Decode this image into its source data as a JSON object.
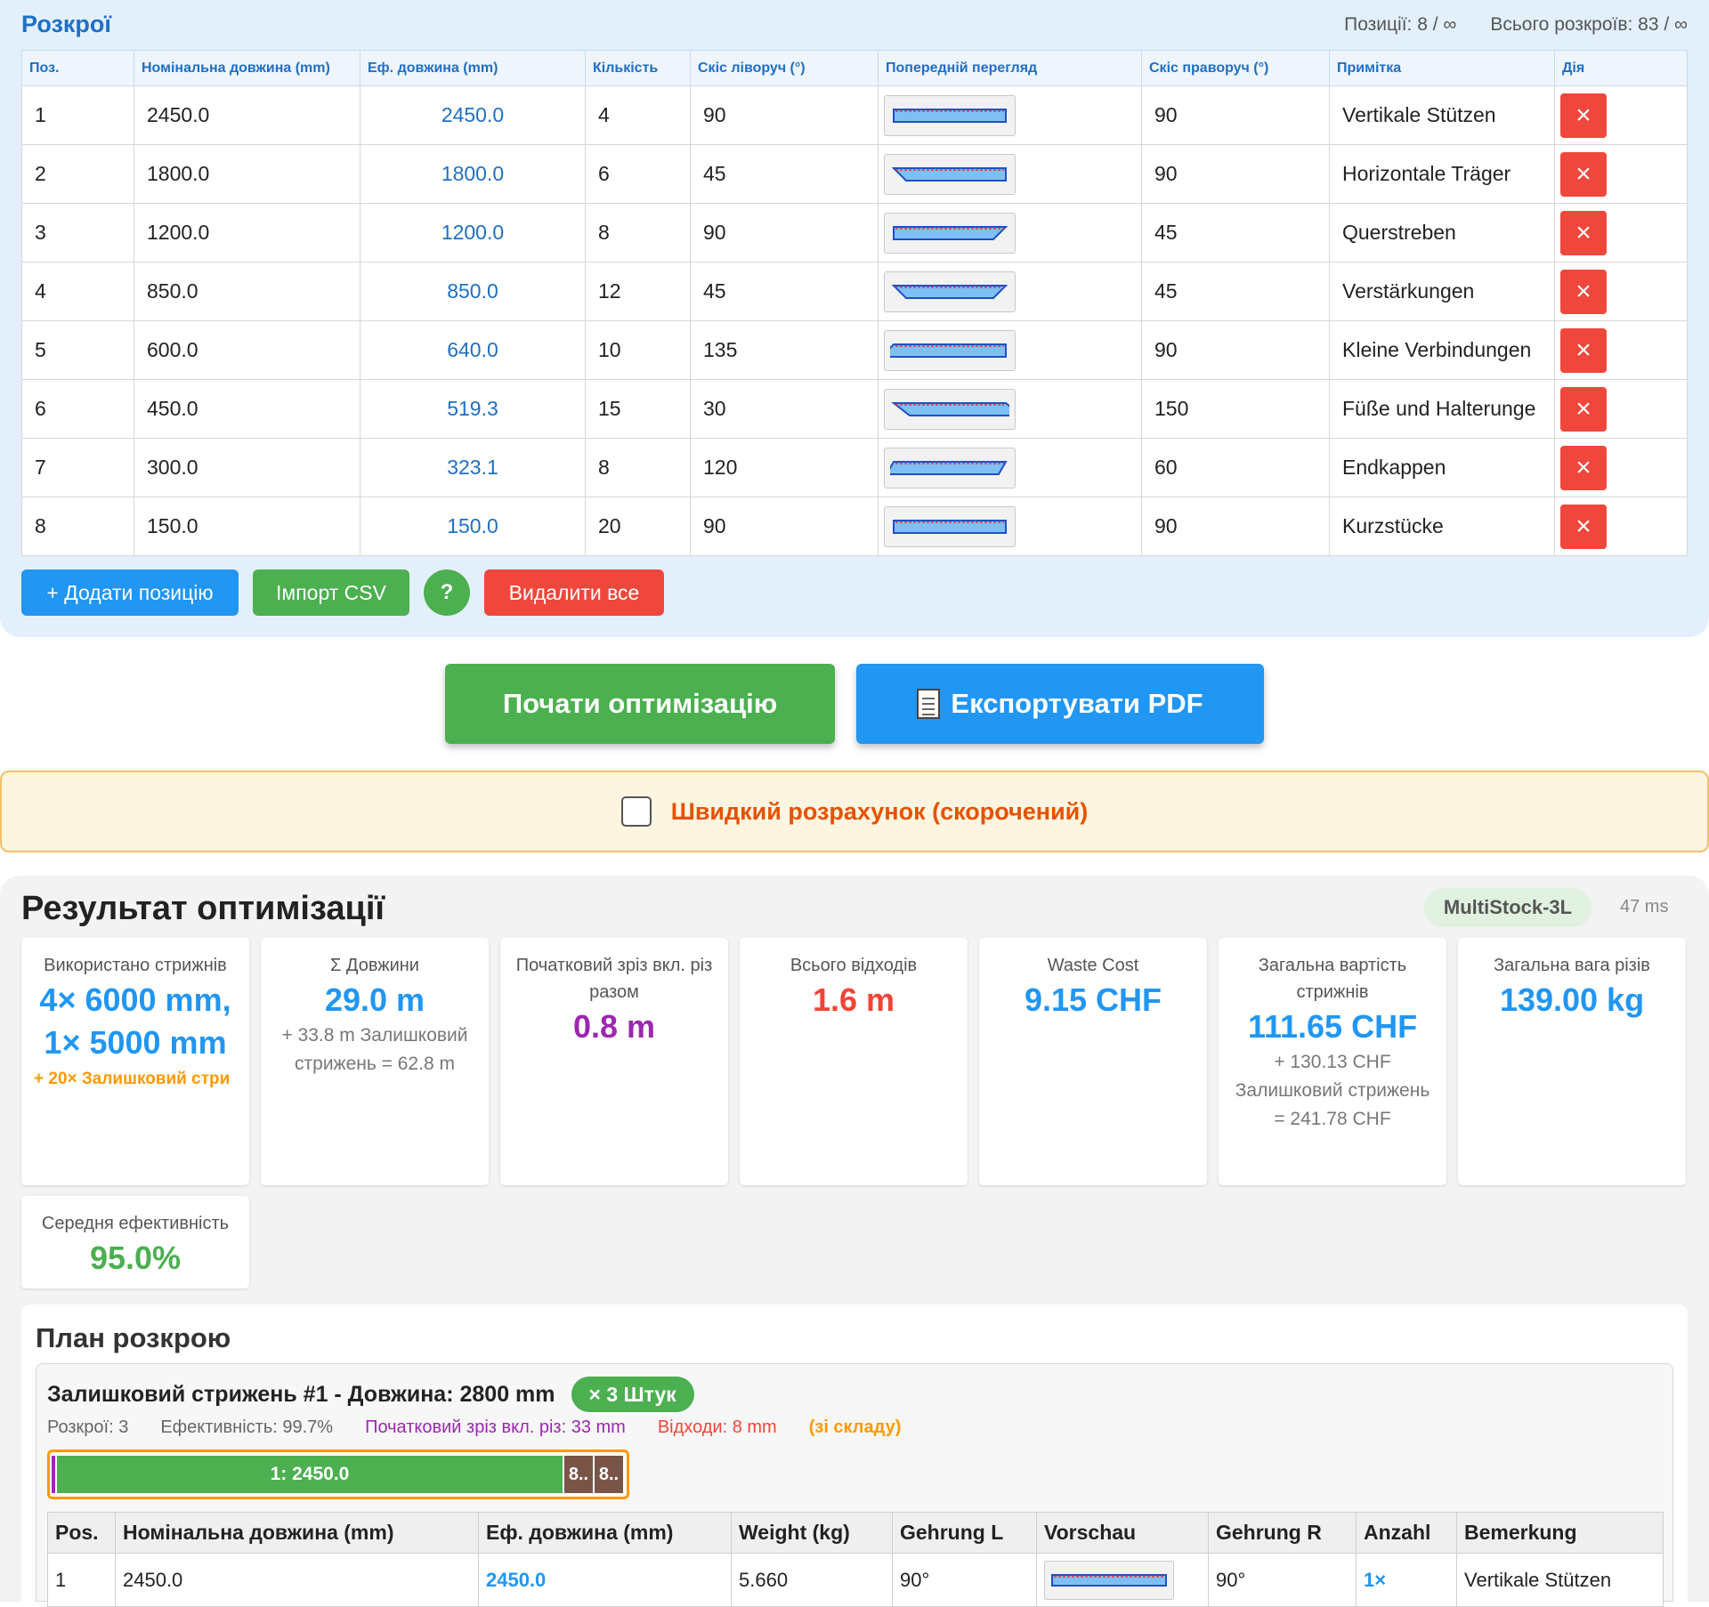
{
  "cuts": {
    "title": "Розкрої",
    "positions_stat": "Позиції: 8 / ∞",
    "total_stat": "Всього розкроїв: 83 / ∞",
    "headers": [
      "Поз.",
      "Номінальна довжина (mm)",
      "Еф. довжина (mm)",
      "Кількість",
      "Скіс ліворуч (°)",
      "Попередній перегляд",
      "Скіс праворуч (°)",
      "Примітка",
      "Дія"
    ],
    "rows": [
      {
        "pos": "1",
        "nominal": "2450.0",
        "effective": "2450.0",
        "qty": "4",
        "angle_left": "90",
        "angle_right": "90",
        "note": "Vertikale Stützen"
      },
      {
        "pos": "2",
        "nominal": "1800.0",
        "effective": "1800.0",
        "qty": "6",
        "angle_left": "45",
        "angle_right": "90",
        "note": "Horizontale Träger"
      },
      {
        "pos": "3",
        "nominal": "1200.0",
        "effective": "1200.0",
        "qty": "8",
        "angle_left": "90",
        "angle_right": "45",
        "note": "Querstreben"
      },
      {
        "pos": "4",
        "nominal": "850.0",
        "effective": "850.0",
        "qty": "12",
        "angle_left": "45",
        "angle_right": "45",
        "note": "Verstärkungen"
      },
      {
        "pos": "5",
        "nominal": "600.0",
        "effective": "640.0",
        "qty": "10",
        "angle_left": "135",
        "angle_right": "90",
        "note": "Kleine Verbindungen"
      },
      {
        "pos": "6",
        "nominal": "450.0",
        "effective": "519.3",
        "qty": "15",
        "angle_left": "30",
        "angle_right": "150",
        "note": "Füße und Halterunge"
      },
      {
        "pos": "7",
        "nominal": "300.0",
        "effective": "323.1",
        "qty": "8",
        "angle_left": "120",
        "angle_right": "60",
        "note": "Endkappen"
      },
      {
        "pos": "8",
        "nominal": "150.0",
        "effective": "150.0",
        "qty": "20",
        "angle_left": "90",
        "angle_right": "90",
        "note": "Kurzstücke"
      }
    ],
    "delete_icon": "close-icon",
    "add_label": "+ Додати позицію",
    "import_label": "Імпорт CSV",
    "help_label": "?",
    "delete_all_label": "Видалити все"
  },
  "actions": {
    "optimize_label": "Почати оптимізацію",
    "export_label": "Експортувати PDF",
    "export_icon": "document-icon"
  },
  "quick": {
    "label": "Швидкий розрахунок (скорочений)",
    "checked": false
  },
  "results": {
    "title": "Результат оптимізації",
    "algorithm": "MultiStock-3L",
    "time": "47 ms",
    "cards": {
      "bars_used": {
        "label": "Використано стрижнів",
        "line1": "4× 6000 mm,",
        "line2": "1× 5000 mm",
        "extra": "+ 20× Залишковий стри"
      },
      "sum_lengths": {
        "label": "Σ Довжини",
        "value": "29.0 m",
        "sub": "+ 33.8 m Залишковий стрижень = 62.8 m"
      },
      "trim": {
        "label": "Початковий зріз вкл. різ разом",
        "value": "0.8 m"
      },
      "waste": {
        "label": "Всього відходів",
        "value": "1.6 m"
      },
      "waste_cost": {
        "label": "Waste Cost",
        "value": "9.15 CHF"
      },
      "total_cost": {
        "label": "Загальна вартість стрижнів",
        "value": "111.65 CHF",
        "sub": "+ 130.13 CHF Залишковий стрижень = 241.78 CHF"
      },
      "total_weight": {
        "label": "Загальна вага різів",
        "value": "139.00 kg"
      },
      "efficiency": {
        "label": "Середня ефективність",
        "value": "95.0%"
      }
    }
  },
  "plan": {
    "title": "План розкрою",
    "group": {
      "title": "Залишковий стрижень #1 - Довжина: 2800 mm",
      "qty_badge": "× 3 Штук",
      "meta_cuts": "Розкрої: 3",
      "meta_eff": "Ефективність: 99.7%",
      "meta_trim": "Початковий зріз вкл. різ: 33 mm",
      "meta_waste": "Відходи: 8 mm",
      "meta_source": "(зі складу)",
      "bar": {
        "stock_length": 2800,
        "trim": 33,
        "piece_label": "1: 2450.0",
        "piece_length": 2450,
        "waste_labels": [
          "8..",
          "8.."
        ]
      },
      "headers": [
        "Pos.",
        "Номінальна довжина (mm)",
        "Еф. довжина (mm)",
        "Weight (kg)",
        "Gehrung L",
        "Vorschau",
        "Gehrung R",
        "Anzahl",
        "Bemerkung"
      ],
      "rows": [
        {
          "pos": "1",
          "nominal": "2450.0",
          "effective": "2450.0",
          "weight": "5.660",
          "angle_left": "90°",
          "angle_right": "90°",
          "count": "1×",
          "note": "Vertikale Stützen"
        }
      ]
    }
  },
  "colors": {
    "accent_blue": "#2196f3",
    "title_blue": "#1f6fc5",
    "green": "#4caf50",
    "red": "#f0473c",
    "purple": "#9c27b0",
    "orange": "#ff9800",
    "waste_brown": "#795548"
  }
}
